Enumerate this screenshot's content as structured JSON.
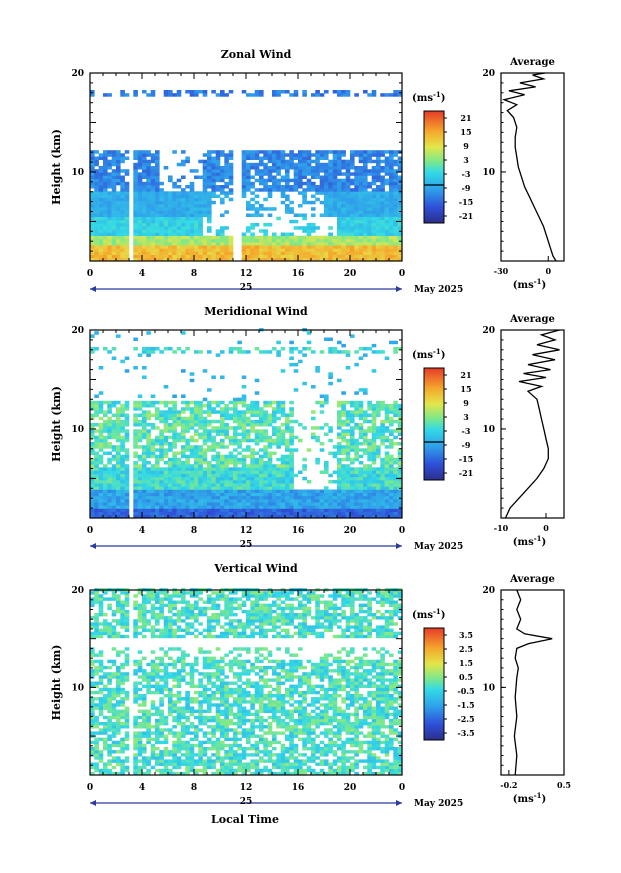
{
  "figure": {
    "xlabel": "Local Time",
    "date_label": "May 2025",
    "day_label": "25",
    "unit_label": "(ms",
    "unit_sup": "-1",
    "avg_title": "Average",
    "ylabel": "Height (km)"
  },
  "chart_data": [
    {
      "type": "heatmap",
      "title": "Zonal Wind",
      "ylabel": "Height (km)",
      "xlabel": "",
      "x_ticks": [
        "0",
        "4",
        "8",
        "12",
        "16",
        "20",
        "0"
      ],
      "xlim": [
        0,
        24
      ],
      "y_ticks": [
        "10",
        "20"
      ],
      "ylim": [
        1,
        20
      ],
      "colorbar": {
        "unit": "(ms-1)",
        "ticks": [
          "21",
          "15",
          "9",
          "3",
          "-3",
          "-9",
          "-15",
          "-21"
        ],
        "range": [
          -24,
          24
        ]
      },
      "profile": {
        "title": "Average",
        "x_ticks": [
          "-30",
          "0"
        ],
        "xlim": [
          -30,
          10
        ],
        "y_ticks": [
          "10",
          "20"
        ],
        "ylim": [
          1,
          20
        ],
        "xlabel": "(ms-1)",
        "points": [
          [
            5,
            1
          ],
          [
            3,
            1.5
          ],
          [
            1,
            2.5
          ],
          [
            -1,
            3.5
          ],
          [
            -3,
            4.5
          ],
          [
            -6,
            5.5
          ],
          [
            -9,
            6.5
          ],
          [
            -12,
            7.5
          ],
          [
            -15,
            8.5
          ],
          [
            -17,
            9.5
          ],
          [
            -19,
            10.5
          ],
          [
            -20,
            11.5
          ],
          [
            -21,
            12.5
          ],
          [
            -21,
            13.5
          ],
          [
            -20,
            14.5
          ],
          [
            -22,
            15.5
          ],
          [
            -26,
            16.2
          ],
          [
            -20,
            16.8
          ],
          [
            -28,
            17.3
          ],
          [
            -15,
            17.8
          ],
          [
            -25,
            18.2
          ],
          [
            -8,
            18.6
          ],
          [
            -18,
            19
          ],
          [
            -3,
            19.4
          ],
          [
            -10,
            19.8
          ],
          [
            -2,
            20
          ]
        ]
      }
    },
    {
      "type": "heatmap",
      "title": "Meridional Wind",
      "ylabel": "Height (km)",
      "xlabel": "",
      "x_ticks": [
        "0",
        "4",
        "8",
        "12",
        "16",
        "20",
        "0"
      ],
      "xlim": [
        0,
        24
      ],
      "y_ticks": [
        "10",
        "20"
      ],
      "ylim": [
        1,
        20
      ],
      "colorbar": {
        "unit": "(ms-1)",
        "ticks": [
          "21",
          "15",
          "9",
          "3",
          "-3",
          "-9",
          "-15",
          "-21"
        ],
        "range": [
          -24,
          24
        ]
      },
      "profile": {
        "title": "Average",
        "x_ticks": [
          "-10",
          "0"
        ],
        "xlim": [
          -10,
          4
        ],
        "y_ticks": [
          "10",
          "20"
        ],
        "ylim": [
          1,
          20
        ],
        "xlabel": "(ms-1)",
        "points": [
          [
            -9,
            1
          ],
          [
            -8,
            2
          ],
          [
            -6,
            3
          ],
          [
            -4,
            4
          ],
          [
            -2,
            5
          ],
          [
            -0.5,
            6
          ],
          [
            0.5,
            7
          ],
          [
            0.5,
            8
          ],
          [
            0,
            9
          ],
          [
            -0.5,
            10
          ],
          [
            -1,
            11
          ],
          [
            -1.5,
            12
          ],
          [
            -2,
            13
          ],
          [
            -4,
            13.8
          ],
          [
            -1,
            14.3
          ],
          [
            -6,
            14.8
          ],
          [
            0,
            15.2
          ],
          [
            -5,
            15.6
          ],
          [
            1,
            16
          ],
          [
            -4,
            16.5
          ],
          [
            2,
            17
          ],
          [
            -3,
            17.5
          ],
          [
            3,
            18
          ],
          [
            -2,
            18.5
          ],
          [
            2,
            19
          ],
          [
            -1,
            19.5
          ],
          [
            3,
            20
          ]
        ]
      }
    },
    {
      "type": "heatmap",
      "title": "Vertical Wind",
      "ylabel": "Height (km)",
      "xlabel": "Local Time",
      "x_ticks": [
        "0",
        "4",
        "8",
        "12",
        "16",
        "20",
        "0"
      ],
      "xlim": [
        0,
        24
      ],
      "y_ticks": [
        "10",
        "20"
      ],
      "ylim": [
        1,
        20
      ],
      "colorbar": {
        "unit": "(ms-1)",
        "ticks": [
          "3.5",
          "2.5",
          "1.5",
          "0.5",
          "-0.5",
          "-1.5",
          "-2.5",
          "-3.5"
        ],
        "range": [
          -4,
          4
        ]
      },
      "profile": {
        "title": "Average",
        "x_ticks": [
          "-0.2",
          "0.5"
        ],
        "xlim": [
          -0.3,
          0.5
        ],
        "y_ticks": [
          "10",
          "20"
        ],
        "ylim": [
          1,
          20
        ],
        "xlabel": "(ms-1)",
        "points": [
          [
            -0.12,
            1
          ],
          [
            -0.1,
            3
          ],
          [
            -0.13,
            5
          ],
          [
            -0.1,
            7
          ],
          [
            -0.12,
            9
          ],
          [
            -0.1,
            11
          ],
          [
            -0.08,
            12
          ],
          [
            -0.12,
            13
          ],
          [
            -0.1,
            14
          ],
          [
            0.05,
            14.5
          ],
          [
            0.35,
            15
          ],
          [
            0.0,
            15.5
          ],
          [
            -0.1,
            16
          ],
          [
            -0.05,
            17
          ],
          [
            -0.1,
            18
          ],
          [
            -0.05,
            19
          ],
          [
            -0.1,
            20
          ]
        ]
      }
    }
  ]
}
